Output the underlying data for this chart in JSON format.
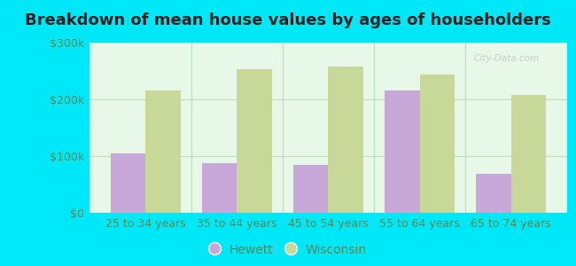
{
  "title": "Breakdown of mean house values by ages of householders",
  "categories": [
    "25 to 34 years",
    "35 to 44 years",
    "45 to 54 years",
    "55 to 64 years",
    "65 to 74 years"
  ],
  "hewett_values": [
    105000,
    88000,
    85000,
    215000,
    68000
  ],
  "wisconsin_values": [
    215000,
    253000,
    258000,
    243000,
    208000
  ],
  "hewett_color": "#c8a8d8",
  "wisconsin_color": "#c8d898",
  "ylim": [
    0,
    300000
  ],
  "yticks": [
    0,
    100000,
    200000,
    300000
  ],
  "ytick_labels": [
    "$0",
    "$100k",
    "$200k",
    "$300k"
  ],
  "plot_bg_color": "#e8f8e8",
  "outer_background": "#00e8f8",
  "title_fontsize": 13,
  "legend_labels": [
    "Hewett",
    "Wisconsin"
  ],
  "bar_width": 0.38,
  "grid_color": "#bbddbb",
  "tick_color": "#558855",
  "watermark": "City-Data.com"
}
